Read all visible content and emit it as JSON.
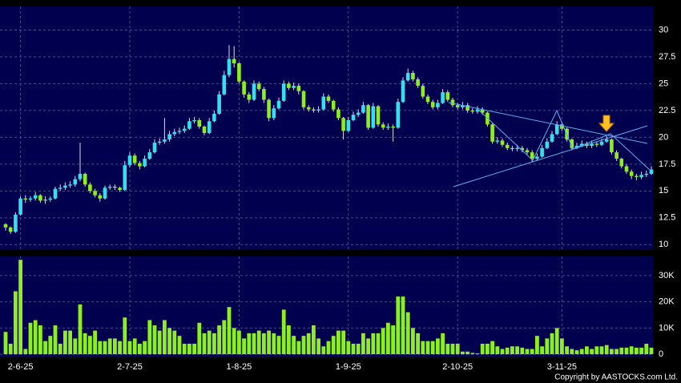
{
  "chart_data": [
    {
      "type": "candlestick",
      "categories": [
        null,
        null,
        null,
        "2-6-25",
        null,
        null,
        null,
        null,
        null,
        null,
        null,
        null,
        null,
        null,
        null,
        null,
        null,
        null,
        null,
        null,
        null,
        null,
        null,
        null,
        null,
        "2-7-25",
        null,
        null,
        null,
        null,
        null,
        null,
        null,
        null,
        null,
        null,
        null,
        null,
        null,
        null,
        null,
        null,
        null,
        null,
        null,
        null,
        null,
        "1-8-25",
        null,
        null,
        null,
        null,
        null,
        null,
        null,
        null,
        null,
        null,
        null,
        null,
        null,
        null,
        null,
        null,
        null,
        null,
        null,
        null,
        null,
        "1-9-25",
        null,
        null,
        null,
        null,
        null,
        null,
        null,
        null,
        null,
        null,
        null,
        null,
        null,
        null,
        null,
        null,
        null,
        null,
        null,
        null,
        null,
        "2-10-25",
        null,
        null,
        null,
        null,
        null,
        null,
        null,
        null,
        null,
        null,
        null,
        null,
        null,
        null,
        null,
        null,
        null,
        null,
        null,
        null,
        "3-11-25",
        null,
        null,
        null,
        null,
        null,
        null,
        null,
        null,
        null,
        null,
        null,
        null,
        null,
        null,
        null,
        null,
        null,
        null
      ],
      "open": [
        11.9,
        11.6,
        11.2,
        12.8,
        14.3,
        14.2,
        14.3,
        14.6,
        14.1,
        14.2,
        14.3,
        15.2,
        15.3,
        15.5,
        15.6,
        16.1,
        16.6,
        15.6,
        15.0,
        14.6,
        14.3,
        15.3,
        15.4,
        15.3,
        15.1,
        17.4,
        18.3,
        17.6,
        17.3,
        18.0,
        18.6,
        19.5,
        19.6,
        19.8,
        20.3,
        20.5,
        20.6,
        20.8,
        21.5,
        21.6,
        21.0,
        20.4,
        21.5,
        22.2,
        24.0,
        25.8,
        27.3,
        26.9,
        25.2,
        24.0,
        23.5,
        25.0,
        24.5,
        23.5,
        21.8,
        22.7,
        23.4,
        25.0,
        24.6,
        24.8,
        24.3,
        22.8,
        22.6,
        22.5,
        22.6,
        23.8,
        23.4,
        22.6,
        21.8,
        20.6,
        21.6,
        22.1,
        22.3,
        23.0,
        20.9,
        22.9,
        21.2,
        20.9,
        21.0,
        20.9,
        23.3,
        25.3,
        26.0,
        25.4,
        24.8,
        23.8,
        23.3,
        22.8,
        23.2,
        24.2,
        23.5,
        23.0,
        22.8,
        23.0,
        22.5,
        22.4,
        22.6,
        22.3,
        21.2,
        19.6,
        19.7,
        19.3,
        19.0,
        18.9,
        19.0,
        18.8,
        18.6,
        18.0,
        18.2,
        19.0,
        19.6,
        20.3,
        21.2,
        20.8,
        19.8,
        19.0,
        19.2,
        19.4,
        19.2,
        19.4,
        19.3,
        19.6,
        19.8,
        18.6,
        18.0,
        17.3,
        16.8,
        16.4,
        16.3,
        16.5,
        16.6
      ],
      "high": [
        12.0,
        11.7,
        13.0,
        14.5,
        14.6,
        14.5,
        14.9,
        14.7,
        14.5,
        14.5,
        15.4,
        15.6,
        15.8,
        15.9,
        16.4,
        19.5,
        16.7,
        15.8,
        15.2,
        14.8,
        15.5,
        15.6,
        15.6,
        15.4,
        17.8,
        18.6,
        18.5,
        17.8,
        18.3,
        18.9,
        19.8,
        19.9,
        21.8,
        20.6,
        20.8,
        20.9,
        21.1,
        21.8,
        21.9,
        21.8,
        21.1,
        21.8,
        22.5,
        24.3,
        26.2,
        28.6,
        28.5,
        27.0,
        25.3,
        24.2,
        25.3,
        25.2,
        24.7,
        23.6,
        23.0,
        23.7,
        25.3,
        25.2,
        25.1,
        25.0,
        24.4,
        23.0,
        22.8,
        22.9,
        24.1,
        24.0,
        23.5,
        22.8,
        21.9,
        21.9,
        22.4,
        22.6,
        23.3,
        23.1,
        23.2,
        23.0,
        21.4,
        21.3,
        21.2,
        23.6,
        25.6,
        26.4,
        26.2,
        25.6,
        25.0,
        24.0,
        23.5,
        23.5,
        24.5,
        24.4,
        23.7,
        23.2,
        23.3,
        23.2,
        22.7,
        22.9,
        22.8,
        22.4,
        21.3,
        20.0,
        19.9,
        19.5,
        19.2,
        19.3,
        19.2,
        19.0,
        18.8,
        18.5,
        19.3,
        19.9,
        20.6,
        21.5,
        21.4,
        20.9,
        19.9,
        19.5,
        19.7,
        19.6,
        19.7,
        19.6,
        19.9,
        20.1,
        19.9,
        18.8,
        18.1,
        17.5,
        17.0,
        16.6,
        16.8,
        16.9,
        17.3
      ],
      "low": [
        11.3,
        11.0,
        11.1,
        12.7,
        13.9,
        14.0,
        14.1,
        13.9,
        13.8,
        14.0,
        14.2,
        15.0,
        15.1,
        15.3,
        15.4,
        15.9,
        15.4,
        14.8,
        14.4,
        14.0,
        14.2,
        15.1,
        15.1,
        14.9,
        15.0,
        17.2,
        17.4,
        17.0,
        17.2,
        17.9,
        18.5,
        19.3,
        19.4,
        19.6,
        20.1,
        20.3,
        20.4,
        20.7,
        21.3,
        20.8,
        20.2,
        20.3,
        21.4,
        22.1,
        23.9,
        25.6,
        26.5,
        25.0,
        23.7,
        23.2,
        23.4,
        24.3,
        23.2,
        21.5,
        21.6,
        22.6,
        23.3,
        24.4,
        24.4,
        24.0,
        22.6,
        22.4,
        22.3,
        22.3,
        22.5,
        23.2,
        22.4,
        21.6,
        19.8,
        20.5,
        21.5,
        21.9,
        22.2,
        20.7,
        20.8,
        21.0,
        20.7,
        20.7,
        19.6,
        20.8,
        23.2,
        25.2,
        25.2,
        24.6,
        23.6,
        23.1,
        22.6,
        22.6,
        23.1,
        23.3,
        22.8,
        22.6,
        22.6,
        22.3,
        22.2,
        22.2,
        22.1,
        21.0,
        19.4,
        19.4,
        19.1,
        18.8,
        18.7,
        18.7,
        18.6,
        18.4,
        17.7,
        17.8,
        18.1,
        18.9,
        19.5,
        20.2,
        20.6,
        19.6,
        18.8,
        18.9,
        19.1,
        19.0,
        19.0,
        19.1,
        19.2,
        19.5,
        18.4,
        17.8,
        17.1,
        16.6,
        16.1,
        16.0,
        16.1,
        16.3,
        16.5
      ],
      "close": [
        11.6,
        11.2,
        12.8,
        14.3,
        14.2,
        14.3,
        14.6,
        14.1,
        14.2,
        14.3,
        15.2,
        15.3,
        15.5,
        15.6,
        16.1,
        16.6,
        15.6,
        15.0,
        14.6,
        14.3,
        15.3,
        15.4,
        15.3,
        15.1,
        17.4,
        18.3,
        17.6,
        17.3,
        18.0,
        18.6,
        19.5,
        19.6,
        19.8,
        20.3,
        20.5,
        20.6,
        20.8,
        21.5,
        21.6,
        21.0,
        20.4,
        21.5,
        22.2,
        24.0,
        25.8,
        27.3,
        26.9,
        25.2,
        24.0,
        23.5,
        25.0,
        24.5,
        23.5,
        21.8,
        22.7,
        23.4,
        25.0,
        24.6,
        24.8,
        24.3,
        22.8,
        22.6,
        22.5,
        22.6,
        23.8,
        23.4,
        22.6,
        21.8,
        20.6,
        21.6,
        22.1,
        22.3,
        23.0,
        20.9,
        22.9,
        21.2,
        20.9,
        21.0,
        20.9,
        23.3,
        25.3,
        26.0,
        25.4,
        24.8,
        23.8,
        23.3,
        22.8,
        23.2,
        24.2,
        23.5,
        23.0,
        22.8,
        23.0,
        22.5,
        22.4,
        22.6,
        22.3,
        21.2,
        19.6,
        19.7,
        19.3,
        19.0,
        18.9,
        19.0,
        18.8,
        18.6,
        18.0,
        18.2,
        19.0,
        19.6,
        20.3,
        21.2,
        20.8,
        19.8,
        19.0,
        19.2,
        19.4,
        19.2,
        19.4,
        19.3,
        19.6,
        19.8,
        18.6,
        18.0,
        17.3,
        16.8,
        16.4,
        16.3,
        16.5,
        16.6,
        17.0
      ],
      "up_color": "#33e0f0",
      "down_color": "#8cf020",
      "ylim": [
        9.5,
        32.2
      ],
      "yticks": [
        10,
        12.5,
        15,
        17.5,
        20,
        22.5,
        25,
        27.5,
        30
      ],
      "grid": true
    },
    {
      "type": "bar",
      "color": "#8cf020",
      "values": [
        8500,
        4000,
        24000,
        36000,
        2000,
        12000,
        13000,
        11000,
        5000,
        7000,
        11000,
        4000,
        9000,
        9000,
        6000,
        19000,
        8000,
        7000,
        9000,
        5000,
        5000,
        6000,
        6000,
        5000,
        14000,
        5000,
        6000,
        4000,
        5000,
        13000,
        11000,
        9000,
        13000,
        10000,
        9000,
        7000,
        4000,
        4000,
        4000,
        12000,
        8000,
        9000,
        8000,
        11000,
        13000,
        18000,
        10000,
        9000,
        6000,
        8000,
        8000,
        9000,
        8000,
        9000,
        8000,
        7000,
        17000,
        11000,
        7000,
        5000,
        7000,
        8000,
        11000,
        6000,
        3000,
        5000,
        7000,
        9000,
        9000,
        5000,
        4000,
        4000,
        8000,
        6000,
        8000,
        8000,
        10000,
        12000,
        11000,
        22000,
        22000,
        16000,
        10000,
        8000,
        5000,
        5000,
        5000,
        6000,
        8000,
        4000,
        4000,
        4000,
        1000,
        1000,
        500,
        300,
        4000,
        4000,
        5000,
        3000,
        2000,
        2500,
        3000,
        3000,
        2500,
        2000,
        2000,
        7000,
        3000,
        6000,
        8000,
        10000,
        6000,
        3000,
        2000,
        1500,
        2000,
        3000,
        2000,
        3000,
        3000,
        3500,
        2000,
        2000,
        2500,
        2500,
        3000,
        2500,
        2500,
        4000,
        2500
      ],
      "ylim": [
        -1200,
        37300
      ],
      "yticks": [
        0,
        {
          "value": 10000,
          "label": "10K"
        },
        {
          "value": 20000,
          "label": "20K"
        },
        {
          "value": 30000,
          "label": "30K"
        }
      ],
      "grid": true
    }
  ],
  "copyright": "Copyright by AASTOCKS.com Ltd."
}
